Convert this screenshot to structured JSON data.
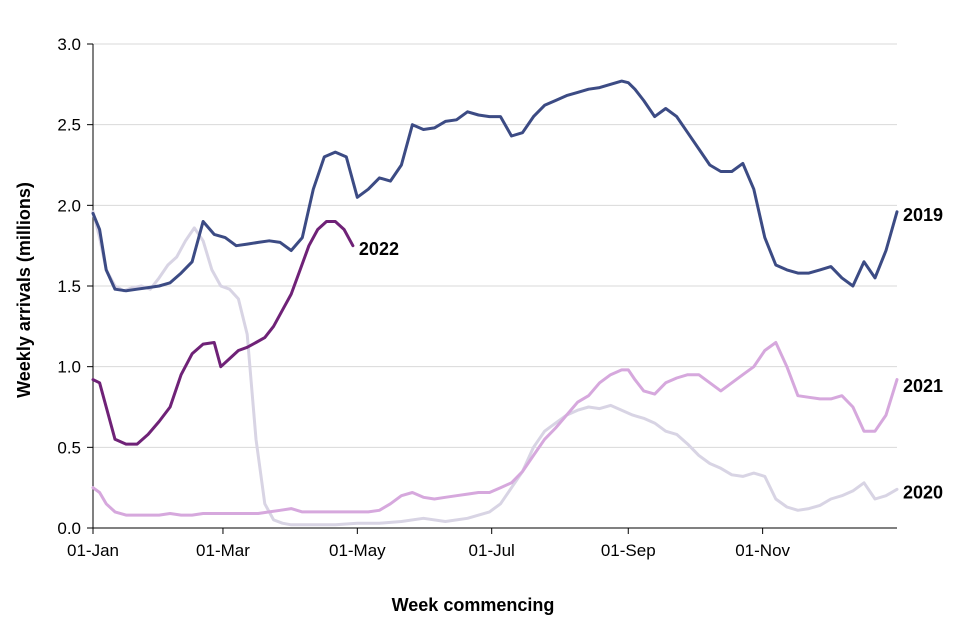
{
  "chart_data": {
    "type": "line",
    "title": "",
    "xlabel": "Week commencing",
    "ylabel": "Weekly arrivals (millions)",
    "ylim": [
      0,
      3.0
    ],
    "yticks": [
      0.0,
      0.5,
      1.0,
      1.5,
      2.0,
      2.5,
      3.0
    ],
    "ytick_labels": [
      "0.0",
      "0.5",
      "1.0",
      "1.5",
      "2.0",
      "2.5",
      "3.0"
    ],
    "xlim": [
      0,
      365
    ],
    "xticks": [
      0,
      59,
      120,
      181,
      243,
      304
    ],
    "xtick_labels": [
      "01-Jan",
      "01-Mar",
      "01-May",
      "01-Jul",
      "01-Sep",
      "01-Nov"
    ],
    "grid": true,
    "series": [
      {
        "name": "2020",
        "color": "#d8d4e4",
        "label_y": 0.22,
        "x": [
          0,
          3,
          6,
          10,
          14,
          18,
          22,
          26,
          30,
          34,
          38,
          42,
          46,
          50,
          54,
          58,
          62,
          66,
          70,
          74,
          78,
          82,
          86,
          90,
          95,
          100,
          110,
          120,
          130,
          140,
          150,
          160,
          170,
          180,
          185,
          190,
          195,
          200,
          205,
          210,
          215,
          220,
          225,
          230,
          235,
          240,
          245,
          250,
          255,
          260,
          265,
          270,
          275,
          280,
          285,
          290,
          295,
          300,
          305,
          310,
          315,
          320,
          325,
          330,
          335,
          340,
          345,
          350,
          355,
          360,
          365
        ],
        "y": [
          1.96,
          1.8,
          1.6,
          1.5,
          1.47,
          1.49,
          1.5,
          1.48,
          1.55,
          1.63,
          1.68,
          1.78,
          1.86,
          1.78,
          1.6,
          1.5,
          1.48,
          1.42,
          1.2,
          0.55,
          0.15,
          0.05,
          0.03,
          0.02,
          0.02,
          0.02,
          0.02,
          0.03,
          0.03,
          0.04,
          0.06,
          0.04,
          0.06,
          0.1,
          0.15,
          0.25,
          0.35,
          0.5,
          0.6,
          0.65,
          0.7,
          0.73,
          0.75,
          0.74,
          0.76,
          0.73,
          0.7,
          0.68,
          0.65,
          0.6,
          0.58,
          0.52,
          0.45,
          0.4,
          0.37,
          0.33,
          0.32,
          0.34,
          0.32,
          0.18,
          0.13,
          0.11,
          0.12,
          0.14,
          0.18,
          0.2,
          0.23,
          0.28,
          0.18,
          0.2,
          0.24
        ]
      },
      {
        "name": "2021",
        "color": "#d6a8dd",
        "label_y": 0.88,
        "x": [
          0,
          3,
          6,
          10,
          15,
          20,
          25,
          30,
          35,
          40,
          45,
          50,
          55,
          60,
          65,
          70,
          75,
          80,
          85,
          90,
          95,
          100,
          105,
          110,
          115,
          120,
          125,
          130,
          135,
          140,
          145,
          150,
          155,
          160,
          165,
          170,
          175,
          180,
          185,
          190,
          195,
          200,
          205,
          210,
          215,
          220,
          225,
          230,
          235,
          240,
          243,
          246,
          250,
          255,
          260,
          265,
          270,
          275,
          280,
          285,
          290,
          295,
          300,
          305,
          310,
          315,
          320,
          325,
          330,
          335,
          340,
          345,
          350,
          355,
          360,
          365
        ],
        "y": [
          0.25,
          0.22,
          0.15,
          0.1,
          0.08,
          0.08,
          0.08,
          0.08,
          0.09,
          0.08,
          0.08,
          0.09,
          0.09,
          0.09,
          0.09,
          0.09,
          0.09,
          0.1,
          0.11,
          0.12,
          0.1,
          0.1,
          0.1,
          0.1,
          0.1,
          0.1,
          0.1,
          0.11,
          0.15,
          0.2,
          0.22,
          0.19,
          0.18,
          0.19,
          0.2,
          0.21,
          0.22,
          0.22,
          0.25,
          0.28,
          0.35,
          0.45,
          0.55,
          0.62,
          0.7,
          0.78,
          0.82,
          0.9,
          0.95,
          0.98,
          0.98,
          0.92,
          0.85,
          0.83,
          0.9,
          0.93,
          0.95,
          0.95,
          0.9,
          0.85,
          0.9,
          0.95,
          1.0,
          1.1,
          1.15,
          1.0,
          0.82,
          0.81,
          0.8,
          0.8,
          0.82,
          0.75,
          0.6,
          0.6,
          0.7,
          0.92
        ]
      },
      {
        "name": "2019",
        "color": "#3c4b84",
        "label_y": 1.94,
        "x": [
          0,
          3,
          6,
          10,
          15,
          20,
          25,
          30,
          35,
          40,
          45,
          50,
          55,
          60,
          65,
          70,
          75,
          80,
          85,
          90,
          95,
          100,
          105,
          110,
          115,
          120,
          125,
          130,
          135,
          140,
          145,
          150,
          155,
          160,
          165,
          170,
          175,
          180,
          185,
          190,
          195,
          200,
          205,
          210,
          215,
          220,
          225,
          230,
          235,
          240,
          243,
          246,
          250,
          255,
          260,
          265,
          270,
          275,
          280,
          285,
          290,
          295,
          300,
          305,
          310,
          315,
          320,
          325,
          330,
          335,
          340,
          345,
          350,
          355,
          360,
          365
        ],
        "y": [
          1.95,
          1.85,
          1.6,
          1.48,
          1.47,
          1.48,
          1.49,
          1.5,
          1.52,
          1.58,
          1.65,
          1.9,
          1.82,
          1.8,
          1.75,
          1.76,
          1.77,
          1.78,
          1.77,
          1.72,
          1.8,
          2.1,
          2.3,
          2.33,
          2.3,
          2.05,
          2.1,
          2.17,
          2.15,
          2.25,
          2.5,
          2.47,
          2.48,
          2.52,
          2.53,
          2.58,
          2.56,
          2.55,
          2.55,
          2.43,
          2.45,
          2.55,
          2.62,
          2.65,
          2.68,
          2.7,
          2.72,
          2.73,
          2.75,
          2.77,
          2.76,
          2.72,
          2.65,
          2.55,
          2.6,
          2.55,
          2.45,
          2.35,
          2.25,
          2.21,
          2.21,
          2.26,
          2.1,
          1.8,
          1.63,
          1.6,
          1.58,
          1.58,
          1.6,
          1.62,
          1.55,
          1.5,
          1.65,
          1.55,
          1.72,
          1.96
        ]
      },
      {
        "name": "2022",
        "color": "#6f2277",
        "label_y": 1.73,
        "x": [
          0,
          3,
          6,
          10,
          15,
          20,
          25,
          30,
          35,
          40,
          45,
          50,
          55,
          58,
          62,
          66,
          70,
          74,
          78,
          82,
          86,
          90,
          94,
          98,
          102,
          106,
          110,
          114,
          118
        ],
        "y": [
          0.92,
          0.9,
          0.75,
          0.55,
          0.52,
          0.52,
          0.58,
          0.66,
          0.75,
          0.95,
          1.08,
          1.14,
          1.15,
          1.0,
          1.05,
          1.1,
          1.12,
          1.15,
          1.18,
          1.25,
          1.35,
          1.45,
          1.6,
          1.75,
          1.85,
          1.9,
          1.9,
          1.85,
          1.75
        ]
      }
    ]
  }
}
